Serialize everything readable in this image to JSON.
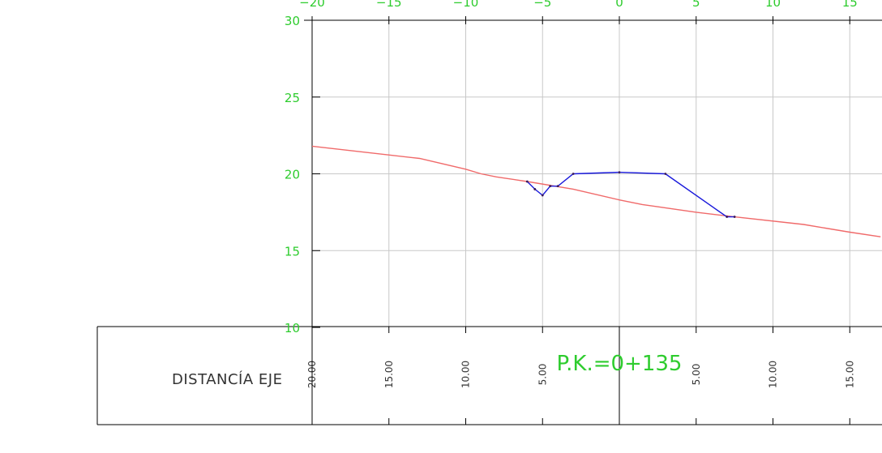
{
  "chart_data": {
    "type": "line",
    "title": "",
    "xlabel": "",
    "ylabel": "",
    "xlim": [
      -20,
      17
    ],
    "ylim": [
      10,
      30
    ],
    "grid": true,
    "x_ticks": [
      {
        "value": -20,
        "label": "−20"
      },
      {
        "value": -15,
        "label": "−15"
      },
      {
        "value": -10,
        "label": "−10"
      },
      {
        "value": -5,
        "label": "−5"
      },
      {
        "value": 0,
        "label": "0"
      },
      {
        "value": 5,
        "label": "5"
      },
      {
        "value": 10,
        "label": "10"
      },
      {
        "value": 15,
        "label": "15"
      }
    ],
    "y_ticks": [
      {
        "value": 30,
        "label": "30"
      },
      {
        "value": 25,
        "label": "25"
      },
      {
        "value": 20,
        "label": "20"
      },
      {
        "value": 15,
        "label": "15"
      },
      {
        "value": 10,
        "label": "10"
      }
    ],
    "series": [
      {
        "color": "#f06a6a",
        "points": [
          [
            -20,
            21.8
          ],
          [
            -13,
            21.0
          ],
          [
            -10,
            20.3
          ],
          [
            -9,
            20.0
          ],
          [
            -8,
            19.8
          ],
          [
            -6,
            19.5
          ],
          [
            -3,
            19.0
          ],
          [
            0,
            18.3
          ],
          [
            1.5,
            18.0
          ],
          [
            5,
            17.5
          ],
          [
            7.5,
            17.2
          ],
          [
            12,
            16.7
          ],
          [
            15,
            16.2
          ],
          [
            17,
            15.9
          ]
        ]
      },
      {
        "color": "#1a1adb",
        "points": [
          [
            -6,
            19.5
          ],
          [
            -5.5,
            19.0
          ],
          [
            -5,
            18.6
          ],
          [
            -4.5,
            19.2
          ],
          [
            -4,
            19.2
          ],
          [
            -3,
            20.0
          ],
          [
            0,
            20.1
          ],
          [
            3,
            20.0
          ],
          [
            7,
            17.2
          ],
          [
            7.5,
            17.2
          ]
        ]
      }
    ],
    "annotations": [
      {
        "text": "P.K.=0+135",
        "x": 0,
        "y": 7.2
      }
    ]
  },
  "table": {
    "row_label": "DISTANCÍA EJE",
    "columns": [
      {
        "value": -20,
        "label": "20.00"
      },
      {
        "value": -15,
        "label": "15.00"
      },
      {
        "value": -10,
        "label": "10.00"
      },
      {
        "value": -5,
        "label": "5.00"
      },
      {
        "value": 5,
        "label": "5.00"
      },
      {
        "value": 10,
        "label": "10.00"
      },
      {
        "value": 15,
        "label": "15.00"
      }
    ]
  },
  "colors": {
    "grid": "#c8c8c8",
    "axis": "#000000",
    "tick_labels": "#2ecc2e",
    "terrain": "#f06a6a",
    "section": "#1a1adb"
  }
}
